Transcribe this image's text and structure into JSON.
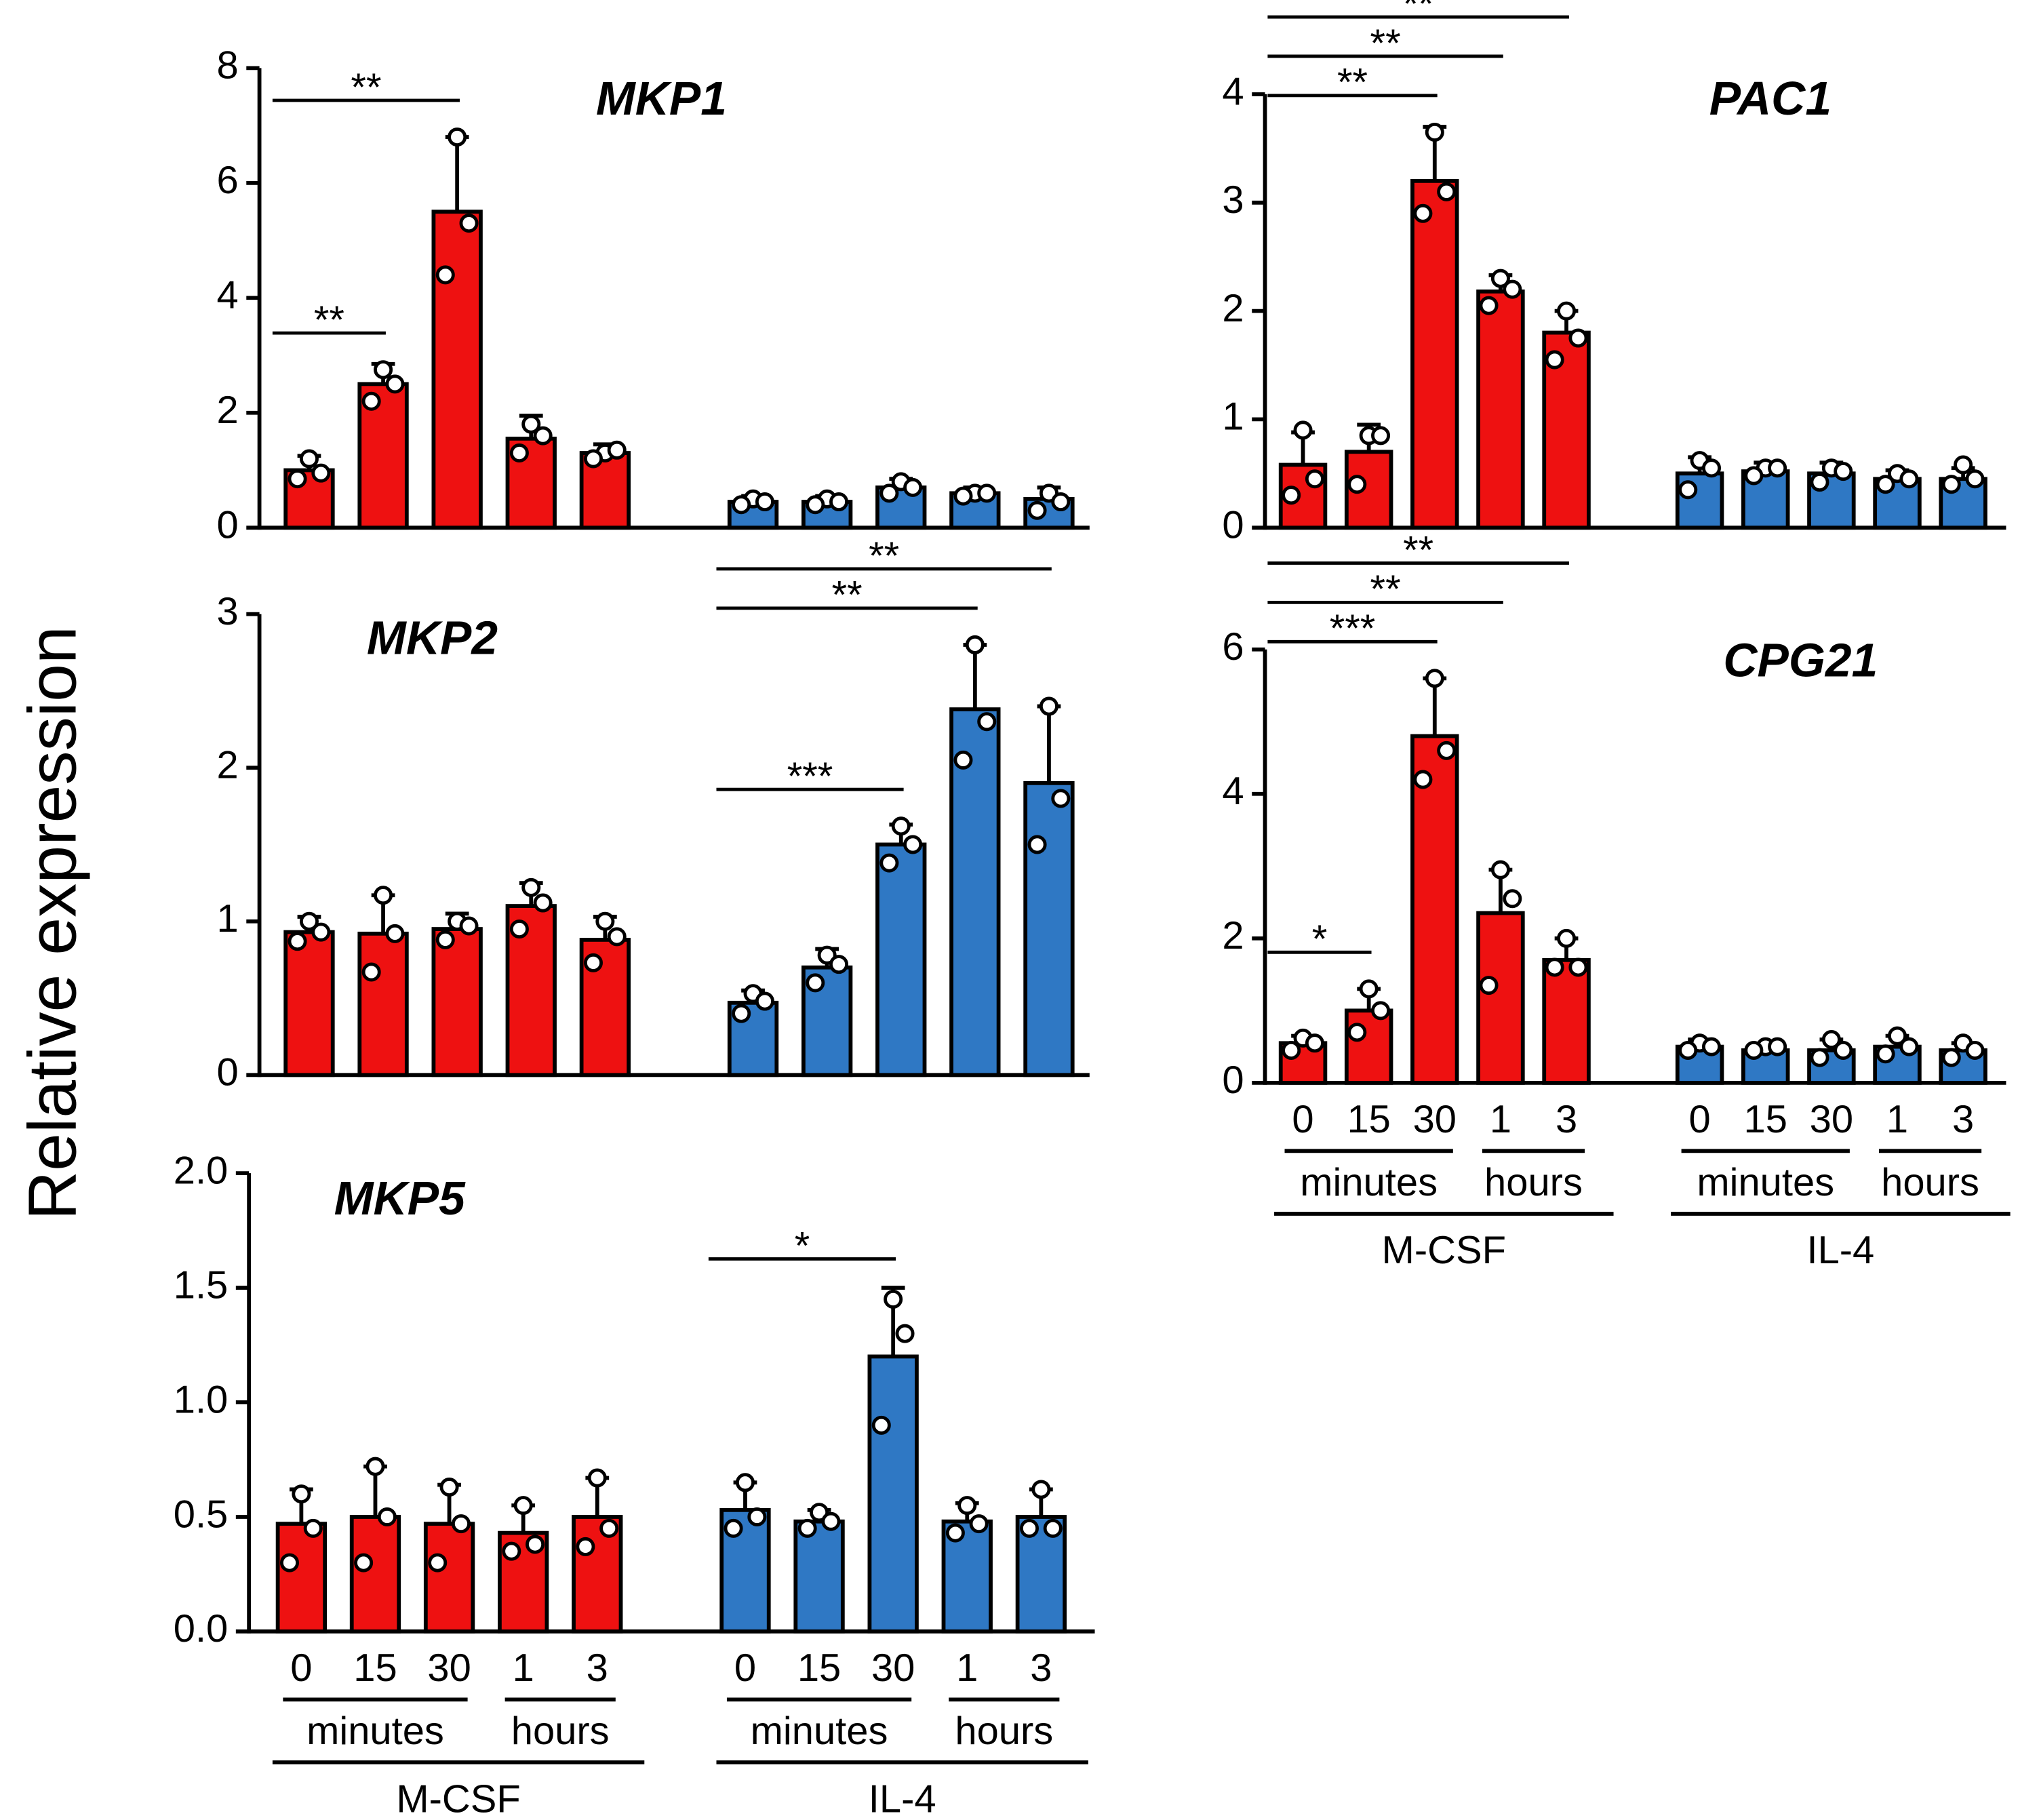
{
  "ylabel": "Relative expression",
  "chart_data": [
    {
      "type": "bar",
      "title": "MKP1",
      "ylim": [
        0,
        8
      ],
      "yticks": [
        0,
        2,
        4,
        6,
        8
      ],
      "series": [
        {
          "color": "#ee1111",
          "values": [
            1.0,
            2.5,
            5.5,
            1.55,
            1.3
          ],
          "errors": [
            0.25,
            0.35,
            1.3,
            0.4,
            0.15
          ],
          "points": [
            [
              1.2,
              0.85,
              0.95
            ],
            [
              2.75,
              2.2,
              2.5
            ],
            [
              6.8,
              4.4,
              5.3
            ],
            [
              1.8,
              1.3,
              1.6
            ],
            [
              1.3,
              1.2,
              1.35
            ]
          ]
        },
        {
          "color": "#2f78c4",
          "values": [
            0.45,
            0.45,
            0.7,
            0.6,
            0.5
          ],
          "errors": [
            0.1,
            0.1,
            0.15,
            0.1,
            0.2
          ],
          "points": [
            [
              0.5,
              0.4,
              0.45
            ],
            [
              0.5,
              0.4,
              0.45
            ],
            [
              0.8,
              0.6,
              0.7
            ],
            [
              0.6,
              0.55,
              0.6
            ],
            [
              0.6,
              0.3,
              0.45
            ]
          ]
        }
      ],
      "annotations": [
        {
          "text": "**",
          "from": 0,
          "to": 1
        },
        {
          "text": "**",
          "from": 0,
          "to": 2
        }
      ]
    },
    {
      "type": "bar",
      "title": "MKP2",
      "ylim": [
        0,
        3
      ],
      "yticks": [
        0,
        1,
        2,
        3
      ],
      "series": [
        {
          "color": "#ee1111",
          "values": [
            0.93,
            0.92,
            0.95,
            1.1,
            0.88
          ],
          "errors": [
            0.1,
            0.25,
            0.1,
            0.15,
            0.15
          ],
          "points": [
            [
              1.0,
              0.87,
              0.93
            ],
            [
              1.17,
              0.67,
              0.92
            ],
            [
              1.0,
              0.88,
              0.97
            ],
            [
              1.22,
              0.95,
              1.12
            ],
            [
              1.0,
              0.73,
              0.9
            ]
          ]
        },
        {
          "color": "#2f78c4",
          "values": [
            0.47,
            0.7,
            1.5,
            2.38,
            1.9
          ],
          "errors": [
            0.08,
            0.12,
            0.13,
            0.42,
            0.5
          ],
          "points": [
            [
              0.53,
              0.4,
              0.48
            ],
            [
              0.78,
              0.6,
              0.72
            ],
            [
              1.62,
              1.38,
              1.5
            ],
            [
              2.8,
              2.05,
              2.3
            ],
            [
              2.4,
              1.5,
              1.8
            ]
          ]
        }
      ],
      "annotations": [
        {
          "text": "***",
          "from": 5,
          "to": 7
        },
        {
          "text": "**",
          "from": 5,
          "to": 8
        },
        {
          "text": "**",
          "from": 5,
          "to": 9
        }
      ]
    },
    {
      "type": "bar",
      "title": "MKP5",
      "ylim": [
        0,
        2
      ],
      "yticks": [
        {
          "value": 0,
          "label": "0.0"
        },
        {
          "value": 0.5,
          "label": "0.5"
        },
        {
          "value": 1,
          "label": "1.0"
        },
        {
          "value": 1.5,
          "label": "1.5"
        },
        {
          "value": 2,
          "label": "2.0"
        }
      ],
      "categories": [
        "0",
        "15",
        "30",
        "1",
        "3"
      ],
      "time_units": [
        "minutes",
        "hours"
      ],
      "series": [
        {
          "name": "M-CSF",
          "color": "#ee1111",
          "values": [
            0.47,
            0.5,
            0.47,
            0.43,
            0.5
          ],
          "errors": [
            0.15,
            0.22,
            0.17,
            0.12,
            0.17
          ],
          "points": [
            [
              0.6,
              0.3,
              0.45
            ],
            [
              0.72,
              0.3,
              0.5
            ],
            [
              0.63,
              0.3,
              0.47
            ],
            [
              0.55,
              0.35,
              0.38
            ],
            [
              0.67,
              0.37,
              0.45
            ]
          ]
        },
        {
          "name": "IL-4",
          "color": "#2f78c4",
          "values": [
            0.53,
            0.48,
            1.2,
            0.48,
            0.5
          ],
          "errors": [
            0.12,
            0.05,
            0.3,
            0.08,
            0.12
          ],
          "points": [
            [
              0.65,
              0.45,
              0.5
            ],
            [
              0.52,
              0.45,
              0.48
            ],
            [
              1.45,
              0.9,
              1.3
            ],
            [
              0.55,
              0.43,
              0.47
            ],
            [
              0.62,
              0.45,
              0.45
            ]
          ]
        }
      ],
      "annotations": [
        {
          "text": "*",
          "from": 5,
          "to": 7
        }
      ]
    },
    {
      "type": "bar",
      "title": "PAC1",
      "ylim": [
        0,
        4
      ],
      "yticks": [
        0,
        1,
        2,
        3,
        4
      ],
      "series": [
        {
          "color": "#ee1111",
          "values": [
            0.58,
            0.7,
            3.2,
            2.18,
            1.8
          ],
          "errors": [
            0.3,
            0.25,
            0.5,
            0.15,
            0.2
          ],
          "points": [
            [
              0.9,
              0.3,
              0.45
            ],
            [
              0.85,
              0.4,
              0.85
            ],
            [
              3.65,
              2.9,
              3.1
            ],
            [
              2.3,
              2.05,
              2.2
            ],
            [
              2.0,
              1.55,
              1.75
            ]
          ]
        },
        {
          "color": "#2f78c4",
          "values": [
            0.5,
            0.52,
            0.5,
            0.45,
            0.45
          ],
          "errors": [
            0.15,
            0.08,
            0.1,
            0.08,
            0.1
          ],
          "points": [
            [
              0.62,
              0.35,
              0.55
            ],
            [
              0.55,
              0.48,
              0.55
            ],
            [
              0.55,
              0.42,
              0.52
            ],
            [
              0.5,
              0.4,
              0.45
            ],
            [
              0.58,
              0.4,
              0.45
            ]
          ]
        }
      ],
      "annotations": [
        {
          "text": "**",
          "from": 0,
          "to": 2
        },
        {
          "text": "**",
          "from": 0,
          "to": 3
        },
        {
          "text": "**",
          "from": 0,
          "to": 4
        }
      ]
    },
    {
      "type": "bar",
      "title": "CPG21",
      "ylim": [
        0,
        6
      ],
      "yticks": [
        0,
        2,
        4,
        6
      ],
      "categories": [
        "0",
        "15",
        "30",
        "1",
        "3"
      ],
      "time_units": [
        "minutes",
        "hours"
      ],
      "series": [
        {
          "name": "M-CSF",
          "color": "#ee1111",
          "values": [
            0.55,
            1.0,
            4.8,
            2.35,
            1.7
          ],
          "errors": [
            0.1,
            0.3,
            0.8,
            0.6,
            0.3
          ],
          "points": [
            [
              0.62,
              0.45,
              0.55
            ],
            [
              1.3,
              0.7,
              1.0
            ],
            [
              5.6,
              4.2,
              4.6
            ],
            [
              2.95,
              1.35,
              2.55
            ],
            [
              2.0,
              1.6,
              1.6
            ]
          ]
        },
        {
          "name": "IL-4",
          "color": "#2f78c4",
          "values": [
            0.5,
            0.45,
            0.45,
            0.5,
            0.45
          ],
          "errors": [
            0.1,
            0.05,
            0.15,
            0.15,
            0.1
          ],
          "points": [
            [
              0.55,
              0.45,
              0.5
            ],
            [
              0.5,
              0.45,
              0.5
            ],
            [
              0.6,
              0.35,
              0.45
            ],
            [
              0.65,
              0.4,
              0.5
            ],
            [
              0.55,
              0.35,
              0.45
            ]
          ]
        }
      ],
      "annotations": [
        {
          "text": "*",
          "from": 0,
          "to": 1
        },
        {
          "text": "***",
          "from": 0,
          "to": 2
        },
        {
          "text": "**",
          "from": 0,
          "to": 3
        },
        {
          "text": "**",
          "from": 0,
          "to": 4
        }
      ]
    }
  ]
}
